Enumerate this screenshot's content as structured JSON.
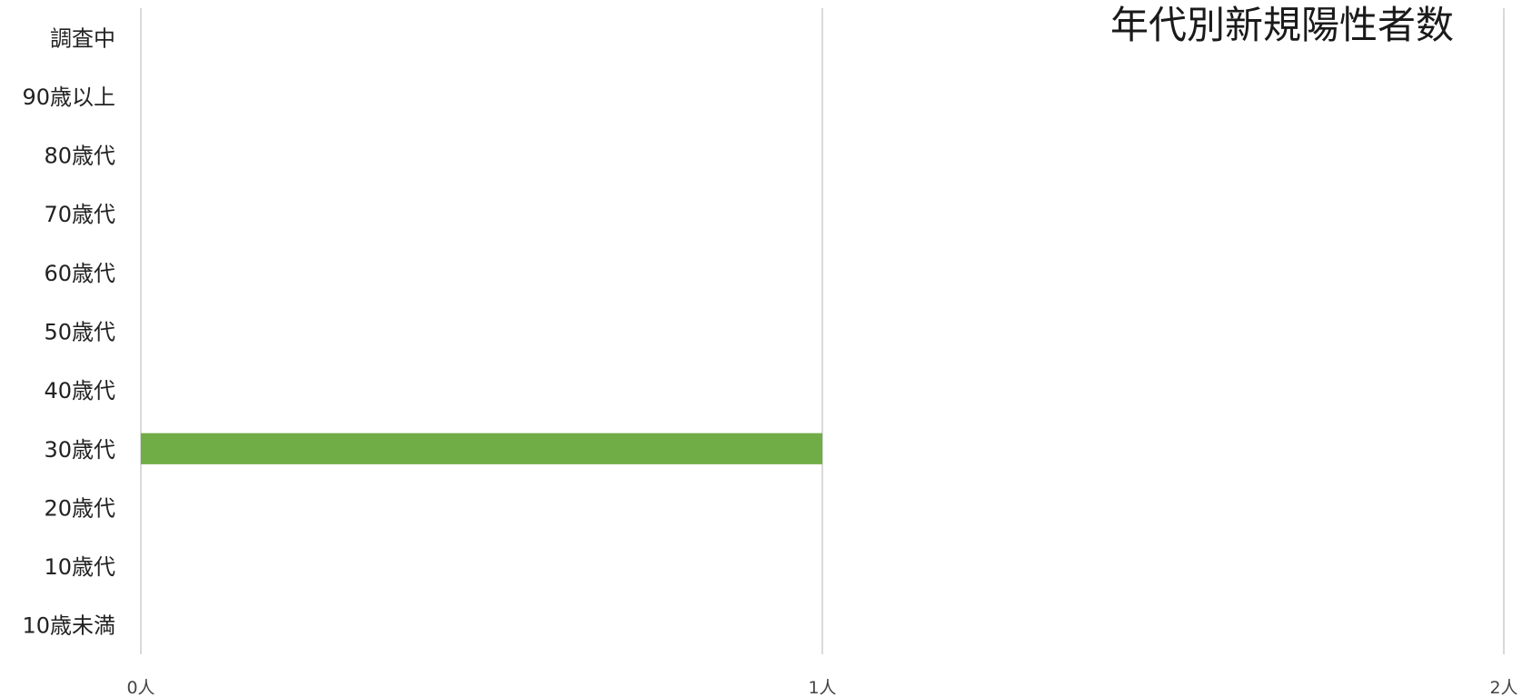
{
  "chart_data": {
    "type": "bar",
    "orientation": "horizontal",
    "title": "年代別新規陽性者数",
    "categories": [
      "調査中",
      "90歳以上",
      "80歳代",
      "70歳代",
      "60歳代",
      "50歳代",
      "40歳代",
      "30歳代",
      "20歳代",
      "10歳代",
      "10歳未満"
    ],
    "values": [
      0,
      0,
      0,
      0,
      0,
      0,
      0,
      1,
      0,
      0,
      0
    ],
    "xlim": [
      0,
      2
    ],
    "xticks": [
      0,
      1,
      2
    ],
    "xtick_labels": [
      "0人",
      "1人",
      "2人"
    ],
    "bar_color": "#70ad47",
    "grid": true,
    "legend": "none"
  }
}
